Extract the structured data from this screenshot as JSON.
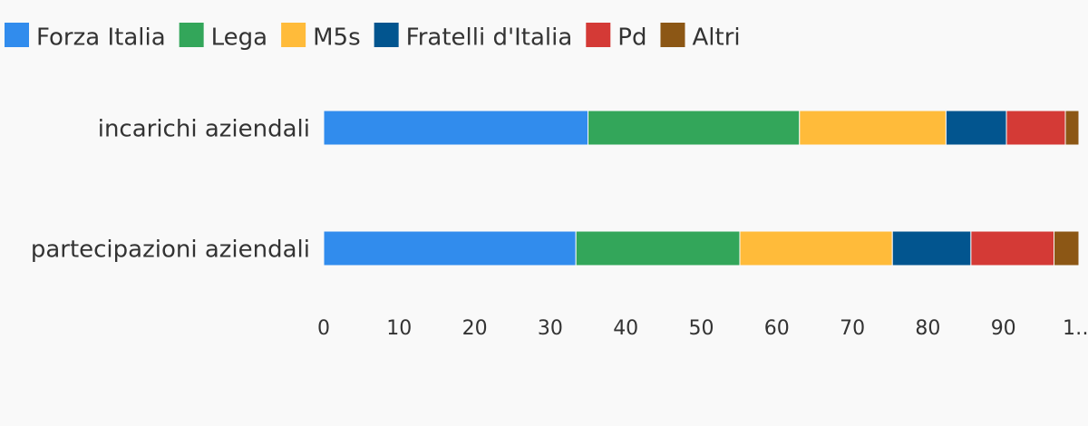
{
  "chart_data": {
    "type": "stacked-bar-horizontal",
    "categories": [
      "incarichi aziendali",
      "partecipazioni aziendali"
    ],
    "series": [
      {
        "name": "Forza Italia",
        "color": "#318ced",
        "values": [
          35,
          33.4
        ]
      },
      {
        "name": "Lega",
        "color": "#33a65a",
        "values": [
          28,
          21.7
        ]
      },
      {
        "name": "M5s",
        "color": "#ffbb3a",
        "values": [
          19.4,
          20.2
        ]
      },
      {
        "name": "Fratelli d'Italia",
        "color": "#02558f",
        "values": [
          8,
          10.4
        ]
      },
      {
        "name": "Pd",
        "color": "#d43a36",
        "values": [
          7.8,
          11
        ]
      },
      {
        "name": "Altri",
        "color": "#8c5715",
        "values": [
          1.8,
          3.3
        ]
      }
    ],
    "xlim": [
      0,
      100
    ],
    "xticks": [
      0,
      10,
      20,
      30,
      40,
      50,
      60,
      70,
      80,
      90,
      {
        "value": 100,
        "label": "1…"
      }
    ],
    "legend": "top-left"
  }
}
